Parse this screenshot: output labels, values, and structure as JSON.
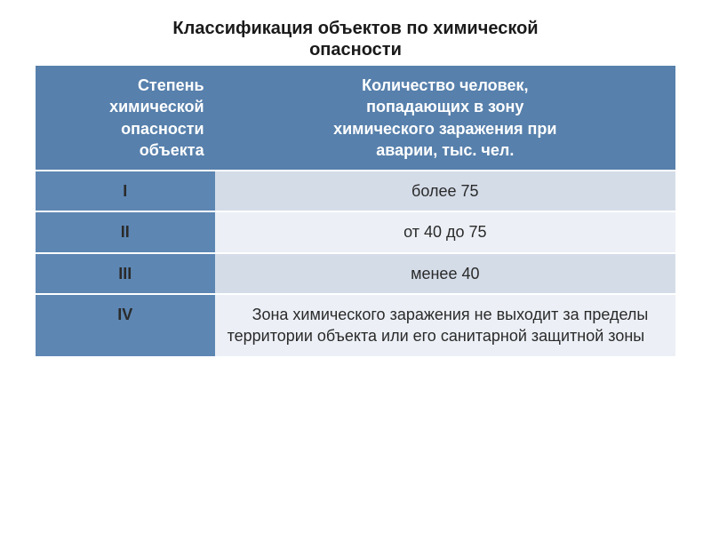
{
  "title_line1": "Классификация объектов по химической",
  "title_line2": "опасности",
  "colors": {
    "header_bg": "#5780ac",
    "label_bg": "#5d86b3",
    "row_odd_bg": "#d4dce8",
    "row_even_bg": "#ecf0f6",
    "border": "#ffffff"
  },
  "table": {
    "header_left_l1": "Степень",
    "header_left_l2": "химической",
    "header_left_l3": "опасности",
    "header_left_l4": "объекта",
    "header_right_l1": "Количество человек,",
    "header_right_l2": "попадающих в зону",
    "header_right_l3": "химического заражения при",
    "header_right_l4": "аварии, тыс. чел.",
    "rows": [
      {
        "label": "I",
        "value": "более 75",
        "align": "center"
      },
      {
        "label": "II",
        "value": "от 40 до 75",
        "align": "center"
      },
      {
        "label": "III",
        "value": "менее 40",
        "align": "center"
      },
      {
        "label": "IV",
        "value": "Зона химического заражения не выходит за пределы территории объекта или его санитарной защитной зоны",
        "align": "justify"
      }
    ]
  }
}
